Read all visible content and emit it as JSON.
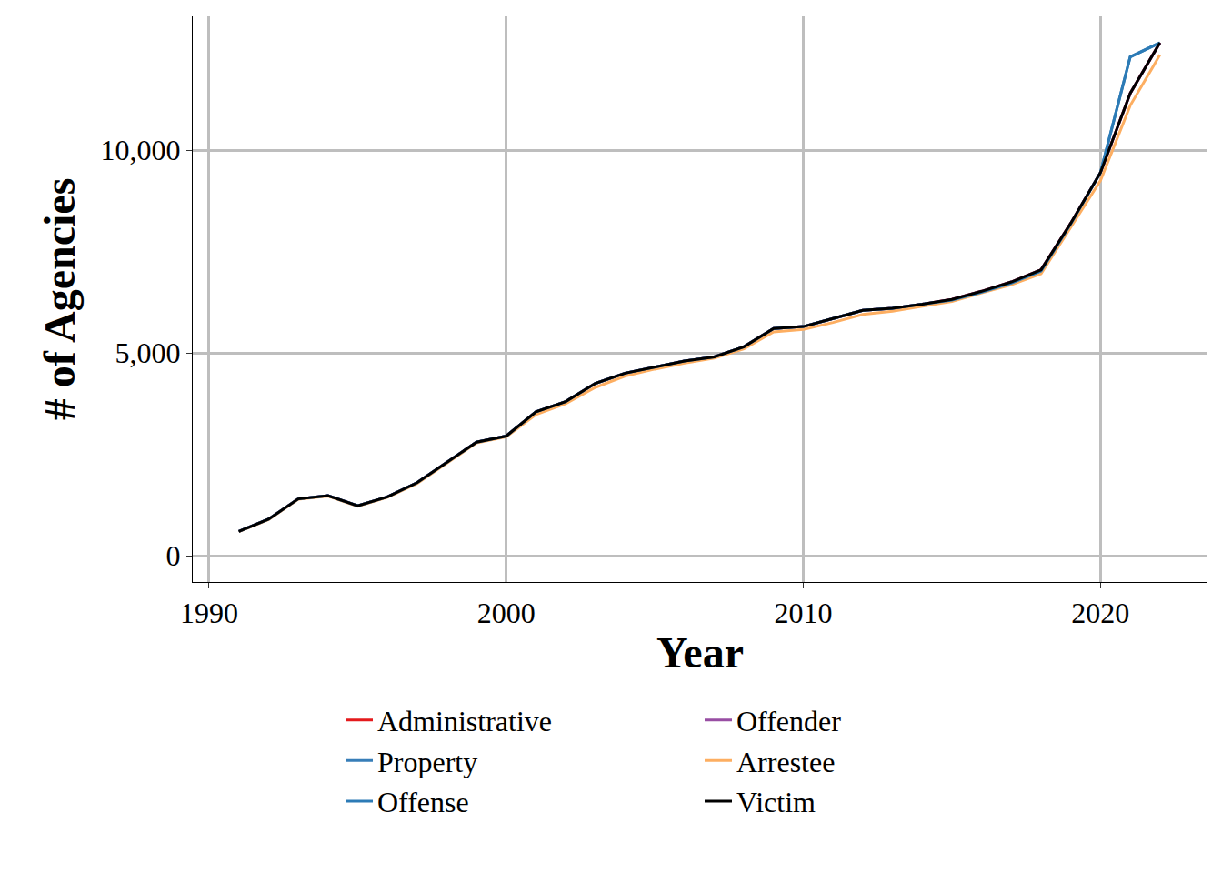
{
  "chart_data": {
    "type": "line",
    "x_label": "Year",
    "y_label": "# of Agencies",
    "x": [
      1991,
      1992,
      1993,
      1994,
      1995,
      1996,
      1997,
      1998,
      1999,
      2000,
      2001,
      2002,
      2003,
      2004,
      2005,
      2006,
      2007,
      2008,
      2009,
      2010,
      2011,
      2012,
      2013,
      2014,
      2015,
      2016,
      2017,
      2018,
      2019,
      2020,
      2021,
      2022
    ],
    "series": [
      {
        "name": "Administrative",
        "color": "#e41a1c",
        "values": [
          600,
          900,
          1400,
          1480,
          1230,
          1450,
          1800,
          2300,
          2800,
          2950,
          3550,
          3800,
          4250,
          4500,
          4650,
          4800,
          4900,
          5150,
          5600,
          5650,
          5850,
          6050,
          6100,
          6200,
          6320,
          6520,
          6750,
          7050,
          8200,
          9450,
          11400,
          12650
        ]
      },
      {
        "name": "Offender",
        "color": "#984ea3",
        "values": [
          600,
          900,
          1400,
          1480,
          1230,
          1450,
          1800,
          2300,
          2800,
          2950,
          3550,
          3800,
          4250,
          4500,
          4650,
          4800,
          4900,
          5150,
          5600,
          5650,
          5850,
          6050,
          6100,
          6200,
          6320,
          6520,
          6750,
          7050,
          8200,
          9450,
          11400,
          12650
        ]
      },
      {
        "name": "Property",
        "color": "#377eb8",
        "values": [
          600,
          900,
          1400,
          1480,
          1230,
          1450,
          1800,
          2300,
          2800,
          2950,
          3550,
          3800,
          4250,
          4500,
          4650,
          4800,
          4900,
          5150,
          5600,
          5650,
          5850,
          6050,
          6100,
          6200,
          6300,
          6500,
          6720,
          7020,
          8180,
          9450,
          12300,
          12650
        ]
      },
      {
        "name": "Arrestee",
        "color": "#fdae61",
        "values": [
          590,
          890,
          1390,
          1470,
          1220,
          1440,
          1780,
          2280,
          2780,
          2930,
          3480,
          3750,
          4150,
          4430,
          4600,
          4750,
          4870,
          5100,
          5520,
          5580,
          5750,
          5950,
          6030,
          6150,
          6270,
          6480,
          6680,
          6950,
          8100,
          9250,
          11100,
          12350
        ]
      },
      {
        "name": "Offense",
        "color": "#2c7bb6",
        "values": [
          600,
          900,
          1400,
          1480,
          1230,
          1450,
          1800,
          2300,
          2800,
          2950,
          3550,
          3800,
          4250,
          4500,
          4650,
          4800,
          4900,
          5150,
          5600,
          5650,
          5850,
          6050,
          6100,
          6200,
          6300,
          6500,
          6720,
          7020,
          8180,
          9450,
          12300,
          12650
        ]
      },
      {
        "name": "Victim",
        "color": "#000000",
        "values": [
          600,
          900,
          1400,
          1480,
          1230,
          1450,
          1800,
          2300,
          2800,
          2950,
          3550,
          3800,
          4250,
          4500,
          4650,
          4800,
          4900,
          5150,
          5600,
          5650,
          5850,
          6050,
          6100,
          6200,
          6320,
          6520,
          6750,
          7050,
          8200,
          9450,
          11400,
          12650
        ]
      }
    ],
    "xlim": [
      1989.45,
      2023.6
    ],
    "xticks": [
      1990,
      2000,
      2010,
      2020
    ],
    "ylim": [
      -650,
      13300
    ],
    "yticks": [
      0,
      {
        "value": 5000,
        "label": "5,000"
      },
      {
        "value": 10000,
        "label": "10,000"
      }
    ],
    "grid": true,
    "legend": "bottom"
  }
}
